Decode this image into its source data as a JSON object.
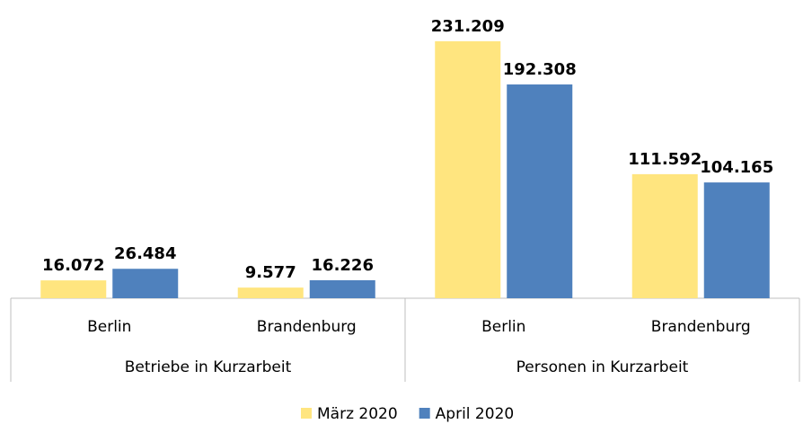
{
  "chart_data": {
    "type": "bar",
    "groups": [
      {
        "name": "Betriebe in Kurzarbeit",
        "categories": [
          "Berlin",
          "Brandenburg"
        ]
      },
      {
        "name": "Personen in Kurzarbeit",
        "categories": [
          "Berlin",
          "Brandenburg"
        ]
      }
    ],
    "series": [
      {
        "name": "März 2020",
        "color": "#ffe57f",
        "values": [
          16072,
          9577,
          231209,
          111592
        ],
        "value_labels": [
          "16.072",
          "9.577",
          "231.209",
          "111.592"
        ]
      },
      {
        "name": "April 2020",
        "color": "#4f81bd",
        "values": [
          26484,
          16226,
          192308,
          104165
        ],
        "value_labels": [
          "26.484",
          "16.226",
          "192.308",
          "104.165"
        ]
      }
    ],
    "ylim": [
      0,
      240000
    ],
    "legend": "bottom"
  }
}
